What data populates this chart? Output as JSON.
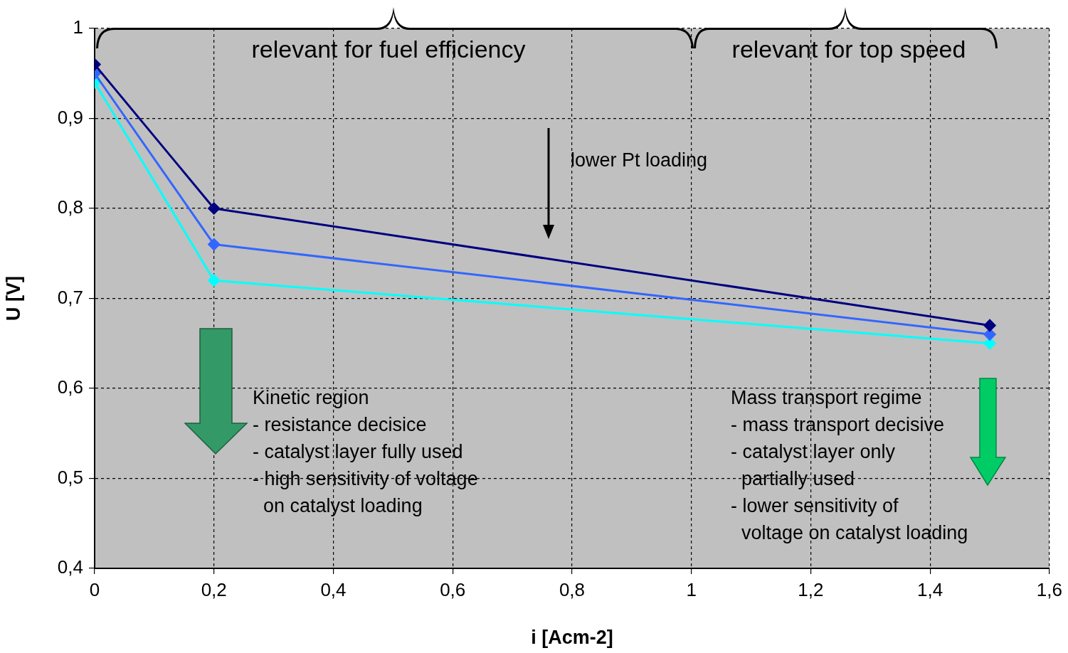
{
  "chart_data": {
    "type": "line",
    "xlabel": "i [Acm-2]",
    "ylabel": "U [V]",
    "x": [
      0,
      0.2,
      1.5
    ],
    "series": [
      {
        "color": "#000080",
        "values": [
          0.96,
          0.8,
          0.67
        ]
      },
      {
        "color": "#3366ff",
        "values": [
          0.95,
          0.76,
          0.66
        ]
      },
      {
        "color": "#00ffff",
        "values": [
          0.94,
          0.72,
          0.65
        ]
      }
    ],
    "xlim": [
      0,
      1.6
    ],
    "xticks": [
      0,
      {
        "value": 0.2,
        "label": "0,2"
      },
      {
        "value": 0.4,
        "label": "0,4"
      },
      {
        "value": 0.6,
        "label": "0,6"
      },
      {
        "value": 0.8,
        "label": "0,8"
      },
      1,
      {
        "value": 1.2,
        "label": "1,2"
      },
      {
        "value": 1.4,
        "label": "1,4"
      },
      {
        "value": 1.6,
        "label": "1,6"
      }
    ],
    "ylim": [
      0.4,
      1
    ],
    "yticks": [
      {
        "value": 0.4,
        "label": "0,4"
      },
      {
        "value": 0.5,
        "label": "0,5"
      },
      {
        "value": 0.6,
        "label": "0,6"
      },
      {
        "value": 0.7,
        "label": "0,7"
      },
      {
        "value": 0.8,
        "label": "0,8"
      },
      {
        "value": 0.9,
        "label": "0,9"
      },
      1
    ],
    "grid": true,
    "legend": false,
    "marker": "diamond",
    "line_style": "solid",
    "annotations": [
      "relevant for fuel efficiency",
      "relevant for top speed",
      "lower Pt loading",
      "Kinetic region\n- resistance decisice\n- catalyst layer fully used\n- high sensitivity of voltage\n  on catalyst loading",
      "Mass transport regime\n- mass transport decisive\n- catalyst layer only\n  partially used\n- lower sensitivity of\n  voltage on catalyst loading"
    ]
  }
}
